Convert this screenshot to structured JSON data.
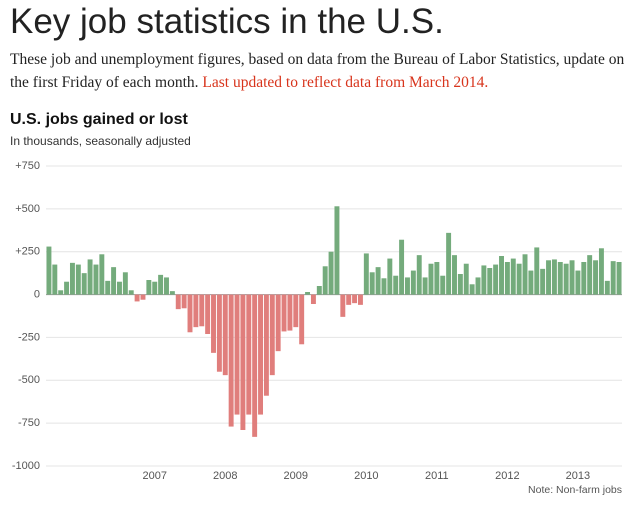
{
  "header": {
    "title": "Key job statistics in the U.S.",
    "description": "These job and unemployment figures, based on data from the Bureau of Labor Statistics, update on the first Friday of each month.",
    "update_note": "Last updated to reflect data from March 2014."
  },
  "chart_data": {
    "type": "bar",
    "title": "U.S. jobs gained or lost",
    "subtitle": "In thousands, seasonally adjusted",
    "note": "Note: Non-farm jobs",
    "categories": [
      null,
      null,
      null,
      null,
      null,
      null,
      null,
      null,
      null,
      null,
      null,
      null,
      null,
      null,
      null,
      null,
      null,
      null,
      "2007",
      null,
      null,
      null,
      null,
      null,
      null,
      null,
      null,
      null,
      null,
      null,
      "2008",
      null,
      null,
      null,
      null,
      null,
      null,
      null,
      null,
      null,
      null,
      null,
      "2009",
      null,
      null,
      null,
      null,
      null,
      null,
      null,
      null,
      null,
      null,
      null,
      "2010",
      null,
      null,
      null,
      null,
      null,
      null,
      null,
      null,
      null,
      null,
      null,
      "2011",
      null,
      null,
      null,
      null,
      null,
      null,
      null,
      null,
      null,
      null,
      null,
      "2012",
      null,
      null,
      null,
      null,
      null,
      null,
      null,
      null,
      null,
      null,
      null,
      "2013",
      null,
      null,
      null,
      null,
      null,
      null,
      null
    ],
    "values": [
      280,
      175,
      25,
      75,
      185,
      175,
      125,
      205,
      175,
      235,
      80,
      160,
      75,
      130,
      25,
      -40,
      -30,
      85,
      75,
      115,
      100,
      20,
      -85,
      -80,
      -220,
      -190,
      -185,
      -230,
      -340,
      -450,
      -470,
      -770,
      -700,
      -790,
      -700,
      -830,
      -700,
      -590,
      -470,
      -330,
      -215,
      -210,
      -190,
      -290,
      15,
      -55,
      50,
      165,
      250,
      515,
      -130,
      -60,
      -50,
      -60,
      240,
      130,
      160,
      95,
      210,
      110,
      320,
      100,
      140,
      230,
      100,
      180,
      190,
      110,
      360,
      230,
      120,
      180,
      60,
      100,
      170,
      155,
      175,
      225,
      190,
      210,
      180,
      235,
      140,
      275,
      150,
      200,
      205,
      190,
      180,
      200,
      140,
      190,
      230,
      200,
      270,
      80,
      195,
      190
    ],
    "positive_color": "#74ab7c",
    "negative_color": "#e07e7c",
    "ylim": [
      -1000,
      750
    ],
    "yticks": [
      {
        "value": 750,
        "label": "+750"
      },
      {
        "value": 500,
        "label": "+500"
      },
      {
        "value": 250,
        "label": "+250"
      },
      0,
      -250,
      -500,
      -750,
      -1000
    ],
    "grid": true
  }
}
